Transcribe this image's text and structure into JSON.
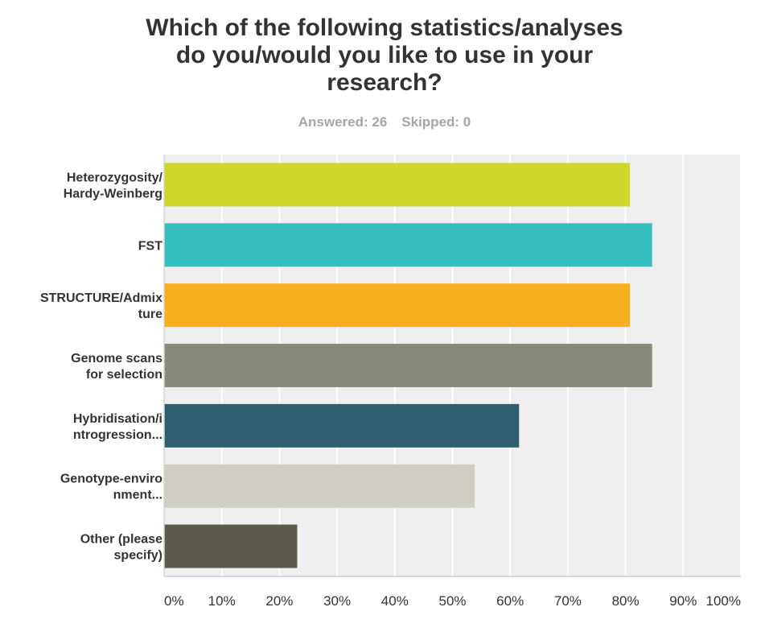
{
  "header": {
    "title_lines": [
      "Which of the following statistics/analyses",
      "do you/would you like to use in your",
      "research?"
    ],
    "answered": "Answered: 26",
    "skipped": "Skipped: 0"
  },
  "chart_data": {
    "type": "bar",
    "orientation": "horizontal",
    "title": "Which of the following statistics/analyses do you/would you like to use in your research?",
    "categories": [
      [
        "Heterozygosity/",
        "Hardy-Weinberg"
      ],
      [
        "FST"
      ],
      [
        "STRUCTURE/Admix",
        "ture"
      ],
      [
        "Genome scans",
        "for selection"
      ],
      [
        "Hybridisation/i",
        "ntrogression..."
      ],
      [
        "Genotype-enviro",
        "nment..."
      ],
      [
        "Other (please",
        "specify)"
      ]
    ],
    "values": [
      80.77,
      84.62,
      80.77,
      84.62,
      61.54,
      53.85,
      23.08
    ],
    "unit": "%",
    "colors": [
      "#cfd629",
      "#35bfc0",
      "#f6b01e",
      "#8a8a78",
      "#2f5f6e",
      "#cfcec0",
      "#5c5b4a"
    ],
    "xlim": [
      0,
      100
    ],
    "xticks": [
      "0%",
      "10%",
      "20%",
      "30%",
      "40%",
      "50%",
      "60%",
      "70%",
      "80%",
      "90%",
      "100%"
    ],
    "grid": true,
    "legend": "none"
  }
}
